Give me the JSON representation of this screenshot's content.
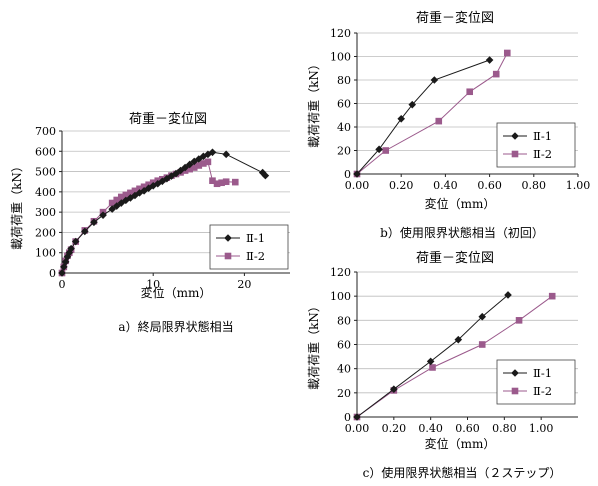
{
  "chart_data": [
    {
      "type": "line",
      "title": "荷重－変位図",
      "xlabel": "変位（mm）",
      "ylabel": "載荷荷重（kN）",
      "caption": "a）終局限界状態相当",
      "xlim": [
        0,
        25
      ],
      "ylim": [
        0,
        700
      ],
      "xticks": [
        0,
        10,
        20
      ],
      "yticks": [
        0,
        100,
        200,
        300,
        400,
        500,
        600,
        700
      ],
      "grid": true,
      "legend_position": "bottom-right",
      "series": [
        {
          "name": "Ⅱ-1",
          "marker": "diamond",
          "color": "#1a1a1a",
          "x": [
            0,
            0.2,
            0.4,
            0.6,
            0.8,
            1.0,
            1.5,
            2.5,
            3.5,
            4.5,
            5.5,
            6.0,
            6.5,
            7.0,
            7.5,
            8.0,
            8.5,
            9.0,
            9.5,
            10.0,
            10.5,
            11.0,
            11.5,
            12.0,
            12.5,
            13.0,
            13.5,
            14.0,
            14.5,
            15.0,
            15.5,
            16.0,
            16.5,
            18.0,
            22.0,
            22.3
          ],
          "y": [
            0,
            30,
            55,
            80,
            100,
            120,
            155,
            205,
            250,
            285,
            315,
            330,
            345,
            358,
            370,
            382,
            395,
            405,
            418,
            430,
            440,
            452,
            465,
            478,
            490,
            505,
            520,
            535,
            550,
            562,
            575,
            585,
            595,
            585,
            495,
            480
          ]
        },
        {
          "name": "Ⅱ-2",
          "marker": "square",
          "color": "#9b5a8c",
          "x": [
            0,
            0.2,
            0.4,
            0.6,
            0.8,
            1.0,
            1.5,
            2.5,
            3.5,
            4.5,
            5.5,
            6.0,
            6.5,
            7.0,
            7.5,
            8.0,
            8.5,
            9.0,
            9.5,
            10.0,
            10.5,
            11.0,
            11.5,
            12.0,
            12.5,
            13.0,
            13.5,
            14.0,
            14.5,
            15.0,
            15.5,
            16.0,
            16.5,
            17.0,
            17.5,
            18.0,
            19.0
          ],
          "y": [
            0,
            30,
            60,
            85,
            100,
            115,
            155,
            210,
            255,
            300,
            345,
            360,
            375,
            385,
            395,
            405,
            415,
            425,
            435,
            445,
            455,
            462,
            470,
            480,
            488,
            496,
            505,
            512,
            520,
            530,
            540,
            548,
            455,
            440,
            445,
            450,
            448
          ]
        }
      ]
    },
    {
      "type": "line",
      "title": "荷重－変位図",
      "xlabel": "変位（mm）",
      "ylabel": "載荷荷重（kN）",
      "caption": "b）使用限界状態相当（初回）",
      "xlim": [
        0,
        1.0
      ],
      "ylim": [
        0,
        120
      ],
      "xticks": [
        0,
        0.2,
        0.4,
        0.6,
        0.8,
        1.0
      ],
      "xtick_labels": [
        "0.00",
        "0.20",
        "0.40",
        "0.60",
        "0.80",
        "1.00"
      ],
      "yticks": [
        0,
        20,
        40,
        60,
        80,
        100,
        120
      ],
      "grid": true,
      "legend_position": "bottom-right",
      "series": [
        {
          "name": "Ⅱ-1",
          "marker": "diamond",
          "color": "#1a1a1a",
          "x": [
            0,
            0.1,
            0.2,
            0.25,
            0.35,
            0.6
          ],
          "y": [
            0,
            21,
            47,
            59,
            80,
            97
          ]
        },
        {
          "name": "Ⅱ-2",
          "marker": "square",
          "color": "#9b5a8c",
          "x": [
            0,
            0.13,
            0.37,
            0.51,
            0.63,
            0.68
          ],
          "y": [
            0,
            20,
            45,
            70,
            85,
            103
          ]
        }
      ]
    },
    {
      "type": "line",
      "title": "荷重－変位図",
      "xlabel": "変位（mm）",
      "ylabel": "載荷荷重（kN）",
      "caption": "c）使用限界状態相当（２ステップ）",
      "xlim": [
        0,
        1.2
      ],
      "ylim": [
        0,
        120
      ],
      "xticks": [
        0,
        0.2,
        0.4,
        0.6,
        0.8,
        1.0
      ],
      "xtick_labels": [
        "0.00",
        "0.20",
        "0.40",
        "0.60",
        "0.80",
        "1.00"
      ],
      "yticks": [
        0,
        20,
        40,
        60,
        80,
        100,
        120
      ],
      "grid": true,
      "legend_position": "bottom-right",
      "series": [
        {
          "name": "Ⅱ-1",
          "marker": "diamond",
          "color": "#1a1a1a",
          "x": [
            0,
            0.2,
            0.4,
            0.55,
            0.68,
            0.82
          ],
          "y": [
            0,
            23,
            46,
            64,
            83,
            101
          ]
        },
        {
          "name": "Ⅱ-2",
          "marker": "square",
          "color": "#9b5a8c",
          "x": [
            0,
            0.2,
            0.41,
            0.68,
            0.88,
            1.06
          ],
          "y": [
            0,
            22,
            41,
            60,
            80,
            100
          ]
        }
      ]
    }
  ]
}
